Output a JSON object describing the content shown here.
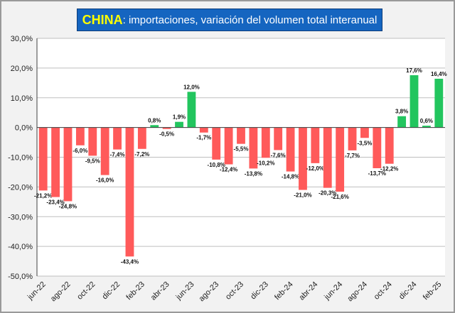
{
  "title": {
    "main": "CHINA",
    "sub": ": importaciones, variación del volumen total interanual"
  },
  "chart_data": {
    "type": "bar",
    "x": [
      "jun-22",
      "jul-22",
      "ago-22",
      "sep-22",
      "oct-22",
      "nov-22",
      "dic-22",
      "ene-23",
      "feb-23",
      "mar-23",
      "abr-23",
      "may-23",
      "jun-23",
      "jul-23",
      "ago-23",
      "sep-23",
      "oct-23",
      "nov-23",
      "dic-23",
      "ene-24",
      "feb-24",
      "mar-24",
      "abr-24",
      "may-24",
      "jun-24",
      "jul-24",
      "ago-24",
      "sep-24",
      "oct-24",
      "nov-24",
      "dic-24",
      "ene-25",
      "feb-25"
    ],
    "x_tick_labels": [
      "jun-22",
      "ago-22",
      "oct-22",
      "dic-22",
      "feb-23",
      "abr-23",
      "jun-23",
      "ago-23",
      "oct-23",
      "dic-23",
      "feb-24",
      "abr-24",
      "jun-24",
      "ago-24",
      "oct-24",
      "dic-24",
      "feb-25"
    ],
    "values": [
      -21.2,
      -23.4,
      -24.8,
      -6.0,
      -9.5,
      -16.0,
      -7.4,
      -43.4,
      -7.2,
      0.8,
      -0.5,
      1.9,
      12.0,
      -1.7,
      -10.8,
      -12.4,
      -5.5,
      -13.8,
      -10.2,
      -7.6,
      -14.8,
      -21.0,
      -12.0,
      -20.3,
      -21.6,
      -7.7,
      -3.5,
      -13.7,
      -12.2,
      3.8,
      17.6,
      0.6,
      16.4
    ],
    "data_labels": [
      "-21,2%",
      "-23,4%",
      "-24,8%",
      "-6,0%",
      "-9,5%",
      "-16,0%",
      "-7,4%",
      "-43,4%",
      "-7,2%",
      "0,8%",
      "-0,5%",
      "1,9%",
      "12,0%",
      "-1,7%",
      "-10,8%",
      "-12,4%",
      "-5,5%",
      "-13,8%",
      "-10,2%",
      "-7,6%",
      "-14,8%",
      "-21,0%",
      "-12,0%",
      "-20,3%",
      "-21,6%",
      "-7,7%",
      "-3,5%",
      "-13,7%",
      "-12,2%",
      "3,8%",
      "17,6%",
      "0,6%",
      "16,4%"
    ],
    "y_ticks": [
      30,
      20,
      10,
      0,
      -10,
      -20,
      -30,
      -40,
      -50
    ],
    "y_tick_labels": [
      "30,0%",
      "20,0%",
      "10,0%",
      "0,0%",
      "-10,0%",
      "-20,0%",
      "-30,0%",
      "-40,0%",
      "-50,0%"
    ],
    "ylim": [
      -50,
      30
    ],
    "grid": true,
    "legend": "none",
    "colors": {
      "positive": "#22c55e",
      "negative": "#ff5a5a",
      "grid": "#bfbfbf",
      "axis": "#404040"
    }
  }
}
